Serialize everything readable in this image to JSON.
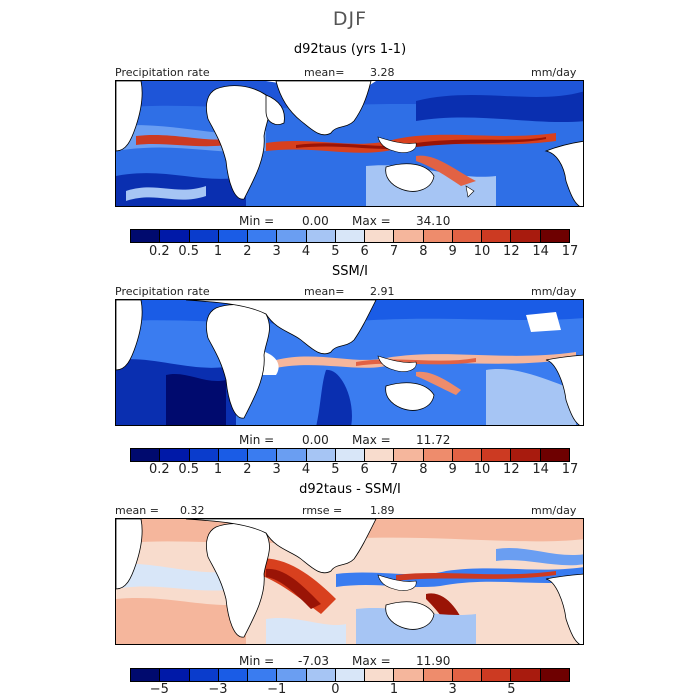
{
  "title": "DJF",
  "units": "mm/day",
  "panels": [
    {
      "id": "model",
      "title": "d92taus (yrs 1-1)",
      "left_label": "Precipitation rate",
      "center_label": "mean=",
      "center_value": "3.28",
      "right_label": "mm/day",
      "min_label": "Min =",
      "min_value": "0.00",
      "max_label": "Max =",
      "max_value": "34.10",
      "scale": "precip"
    },
    {
      "id": "obs",
      "title": "SSM/I",
      "left_label": "Precipitation rate",
      "center_label": "mean=",
      "center_value": "2.91",
      "right_label": "mm/day",
      "min_label": "Min =",
      "min_value": "0.00",
      "max_label": "Max =",
      "max_value": "11.72",
      "scale": "precip"
    },
    {
      "id": "diff",
      "title": "d92taus - SSM/I",
      "left_label": "mean =",
      "left_value": "0.32",
      "center_label": "rmse =",
      "center_value": "1.89",
      "right_label": "mm/day",
      "min_label": "Min =",
      "min_value": "-7.03",
      "max_label": "Max =",
      "max_value": "11.90",
      "scale": "diff"
    }
  ],
  "colorbars": {
    "precip": {
      "colors": [
        "#000a6e",
        "#0019a8",
        "#0a3ccc",
        "#1a5ce6",
        "#3a7cf0",
        "#6a9ef2",
        "#a6c5f4",
        "#d8e6f8",
        "#f8dccd",
        "#f5b69c",
        "#ee8c6c",
        "#e26244",
        "#cc3a22",
        "#a81b0e",
        "#6e0000"
      ],
      "tick_labels": [
        "0.2",
        "0.5",
        "1",
        "2",
        "3",
        "4",
        "5",
        "6",
        "7",
        "8",
        "9",
        "10",
        "12",
        "14",
        "17"
      ]
    },
    "diff": {
      "colors": [
        "#000a6e",
        "#0019a8",
        "#0a3ccc",
        "#1a5ce6",
        "#3a7cf0",
        "#6a9ef2",
        "#a6c5f4",
        "#d8e6f8",
        "#f8dccd",
        "#f5b69c",
        "#ee8c6c",
        "#e26244",
        "#cc3a22",
        "#a81b0e",
        "#6e0000"
      ],
      "tick_labels": [
        "−5",
        "−3",
        "−1",
        "0",
        "1",
        "3",
        "5"
      ]
    }
  },
  "map_colors": {
    "land": "#ffffff",
    "coast": "#000000",
    "deep_blue": "#0a2fb0",
    "blue": "#2f6fe6",
    "light_blue": "#8fb6f2",
    "pale": "#dce8f8",
    "orange": "#f0a080",
    "red": "#d8401e",
    "dark_red": "#9a1406"
  }
}
